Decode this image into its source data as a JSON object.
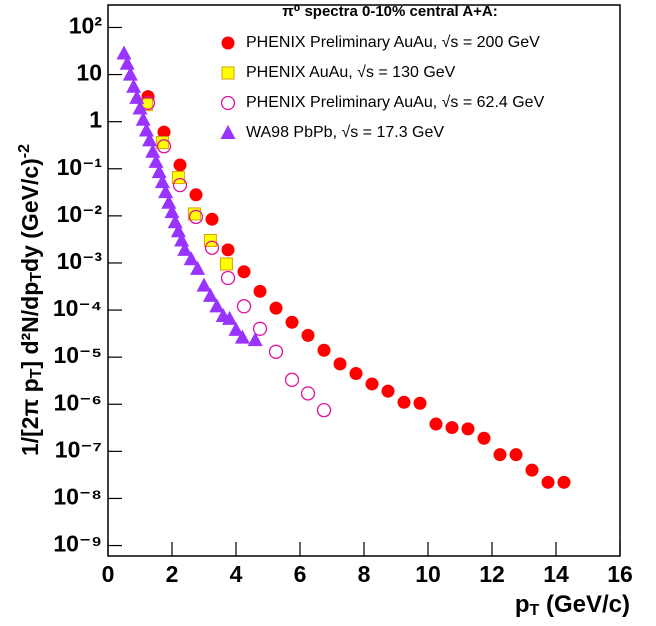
{
  "chart_data": {
    "type": "scatter",
    "title": "π⁰ spectra 0-10% central A+A:",
    "x_label": [
      {
        "text": "p"
      },
      {
        "text": "T",
        "sub": true
      },
      {
        "text": " (GeV/c)"
      }
    ],
    "y_label": [
      {
        "text": "1/[2π p"
      },
      {
        "text": "T",
        "sub": true
      },
      {
        "text": "] d²N/dp"
      },
      {
        "text": "T",
        "sub": true
      },
      {
        "text": "dy (GeV/c)"
      },
      {
        "text": "-2",
        "sup": true
      }
    ],
    "log_y": true,
    "xlim": [
      0,
      16
    ],
    "xticks": [
      0,
      2,
      4,
      6,
      8,
      10,
      12,
      14,
      16
    ],
    "ylim": [
      6e-10,
      300
    ],
    "yticks": [
      {
        "value": 100,
        "label": "10²"
      },
      10,
      1,
      {
        "value": 0.1,
        "label": "10⁻¹"
      },
      {
        "value": 0.01,
        "label": "10⁻²"
      },
      {
        "value": 0.001,
        "label": "10⁻³"
      },
      {
        "value": 0.0001,
        "label": "10⁻⁴"
      },
      {
        "value": 1e-05,
        "label": "10⁻⁵"
      },
      {
        "value": 1e-06,
        "label": "10⁻⁶"
      },
      {
        "value": 1e-07,
        "label": "10⁻⁷"
      },
      {
        "value": 1e-08,
        "label": "10⁻⁸"
      },
      {
        "value": 1e-09,
        "label": "10⁻⁹"
      }
    ],
    "legend": "top-right",
    "series": [
      {
        "name": "PHENIX Preliminary AuAu, √s = 200 GeV",
        "color": "#ff0000",
        "marker": "circle",
        "x": [
          1.25,
          1.75,
          2.25,
          2.75,
          3.25,
          3.75,
          4.25,
          4.75,
          5.25,
          5.75,
          6.25,
          6.75,
          7.25,
          7.75,
          8.25,
          8.75,
          9.25,
          9.75,
          10.25,
          10.75,
          11.25,
          11.75,
          12.25,
          12.75,
          13.25,
          13.75,
          14.25
        ],
        "values": [
          3.4,
          0.6,
          0.12,
          0.028,
          0.0085,
          0.0019,
          0.00065,
          0.00025,
          0.00011,
          5.5e-05,
          2.9e-05,
          1.4e-05,
          7.2e-06,
          4.5e-06,
          2.7e-06,
          1.9e-06,
          1.1e-06,
          1.05e-06,
          3.8e-07,
          3.2e-07,
          3e-07,
          1.9e-07,
          8.5e-08,
          8.5e-08,
          4e-08,
          2.2e-08,
          2.2e-08
        ]
      },
      {
        "name": "PHENIX AuAu, √s = 130 GeV",
        "color": "#ffff00",
        "marker": "square",
        "x": [
          1.2,
          1.7,
          2.2,
          2.7,
          3.2,
          3.7
        ],
        "values": [
          2.3,
          0.36,
          0.065,
          0.011,
          0.003,
          0.00095
        ]
      },
      {
        "name": "PHENIX Preliminary AuAu, √s = 62.4 GeV",
        "color": "#e0149a",
        "marker": "open-circle",
        "x": [
          1.25,
          1.75,
          2.25,
          2.75,
          3.25,
          3.75,
          4.25,
          4.75,
          5.25,
          5.75,
          6.25,
          6.75
        ],
        "values": [
          2.5,
          0.3,
          0.045,
          0.0095,
          0.0021,
          0.00048,
          0.00012,
          4e-05,
          1.3e-05,
          3.3e-06,
          1.7e-06,
          7.5e-07
        ]
      },
      {
        "name": "WA98 PbPb, √s = 17.3 GeV",
        "color": "#9933ff",
        "marker": "triangle",
        "x": [
          0.5,
          0.6,
          0.7,
          0.8,
          0.9,
          1.0,
          1.1,
          1.2,
          1.3,
          1.4,
          1.5,
          1.6,
          1.7,
          1.8,
          1.9,
          2.0,
          2.1,
          2.2,
          2.3,
          2.4,
          2.6,
          2.8,
          3.0,
          3.2,
          3.4,
          3.6,
          3.8,
          4.0,
          4.2,
          4.6
        ],
        "values": [
          28,
          17,
          10,
          5.5,
          3.2,
          1.9,
          1.1,
          0.65,
          0.4,
          0.23,
          0.14,
          0.085,
          0.052,
          0.032,
          0.019,
          0.012,
          0.0073,
          0.0047,
          0.003,
          0.0019,
          0.0012,
          0.00075,
          0.00033,
          0.0002,
          0.00012,
          7.5e-05,
          6.5e-05,
          3.8e-05,
          2.6e-05,
          2.3e-05
        ]
      }
    ]
  }
}
